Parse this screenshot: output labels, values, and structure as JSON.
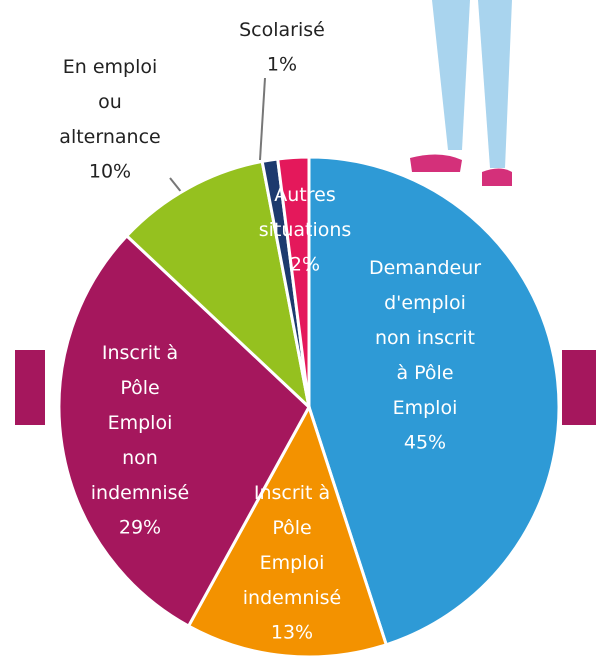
{
  "chart_data": {
    "type": "pie",
    "categories": [
      "Demandeur\nd'emploi\nnon inscrit\nà Pôle\nEmploi",
      "Inscrit à\nPôle\nEmploi\nindemnisé",
      "Inscrit à\nPôle\nEmploi\nnon\nindemnisé",
      "En emploi\nou\nalternance",
      "Scolarisé",
      "Autres\nsituations"
    ],
    "values": [
      45,
      13,
      29,
      10,
      1,
      2
    ],
    "value_labels": [
      "45%",
      "13%",
      "29%",
      "10%",
      "1%",
      "2%"
    ],
    "colors": [
      "#2e9ad6",
      "#f39200",
      "#a5175d",
      "#95c11f",
      "#1d3a6e",
      "#e4185b"
    ]
  }
}
